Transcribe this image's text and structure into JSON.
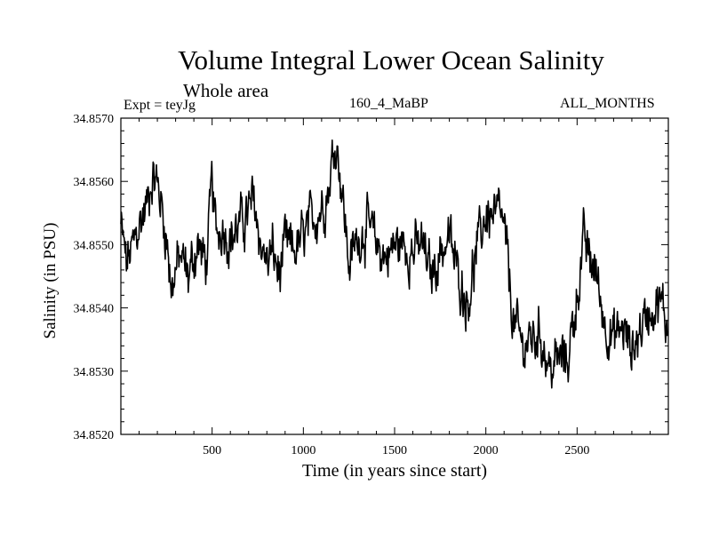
{
  "chart_data": {
    "type": "line",
    "title": "Volume Integral Lower Ocean Salinity",
    "subtitle": "Whole area",
    "experiment": "Expt = teyJg",
    "run_label": "160_4_MaBP",
    "months_label": "ALL_MONTHS",
    "xlabel": "Time (in years since start)",
    "ylabel": "Salinity (in PSU)",
    "xlim": [
      0,
      3000
    ],
    "ylim": [
      34.852,
      34.857
    ],
    "x_ticks": [
      500,
      1000,
      1500,
      2000,
      2500
    ],
    "x_tick_labels": [
      "500",
      "1000",
      "1500",
      "2000",
      "2500"
    ],
    "y_ticks": [
      34.852,
      34.853,
      34.854,
      34.855,
      34.856,
      34.857
    ],
    "y_tick_labels": [
      "34.8520",
      "34.8530",
      "34.8540",
      "34.8550",
      "34.8560",
      "34.8570"
    ],
    "series": [
      {
        "name": "salinity",
        "x": [
          0,
          30,
          60,
          100,
          140,
          170,
          195,
          220,
          250,
          280,
          300,
          330,
          370,
          420,
          470,
          500,
          520,
          560,
          600,
          650,
          700,
          730,
          760,
          800,
          830,
          870,
          900,
          950,
          1000,
          1050,
          1100,
          1140,
          1170,
          1190,
          1220,
          1250,
          1300,
          1350,
          1400,
          1450,
          1500,
          1550,
          1600,
          1650,
          1700,
          1750,
          1800,
          1850,
          1900,
          1950,
          2000,
          2050,
          2080,
          2110,
          2150,
          2200,
          2250,
          2300,
          2350,
          2400,
          2450,
          2500,
          2540,
          2560,
          2600,
          2650,
          2700,
          2750,
          2800,
          2850,
          2900,
          2950,
          3000
        ],
        "y": [
          34.8553,
          34.8547,
          34.8549,
          34.8553,
          34.8556,
          34.8561,
          34.856,
          34.8557,
          34.8551,
          34.8543,
          34.8546,
          34.8548,
          34.8545,
          34.855,
          34.8547,
          34.856,
          34.8552,
          34.8553,
          34.8551,
          34.8553,
          34.8555,
          34.8557,
          34.8551,
          34.8547,
          34.8549,
          34.8545,
          34.855,
          34.8549,
          34.8551,
          34.8554,
          34.8556,
          34.8559,
          34.8566,
          34.8565,
          34.8556,
          34.8547,
          34.8551,
          34.8553,
          34.855,
          34.8548,
          34.855,
          34.855,
          34.8549,
          34.855,
          34.8545,
          34.8549,
          34.8551,
          34.8545,
          34.8541,
          34.8549,
          34.8555,
          34.8554,
          34.8555,
          34.855,
          34.8538,
          34.8534,
          34.8535,
          34.8536,
          34.853,
          34.8532,
          34.8532,
          34.8542,
          34.8551,
          34.8548,
          34.8546,
          34.8538,
          34.8535,
          34.8537,
          34.8533,
          34.8537,
          34.854,
          34.8541,
          34.8537
        ]
      }
    ]
  }
}
